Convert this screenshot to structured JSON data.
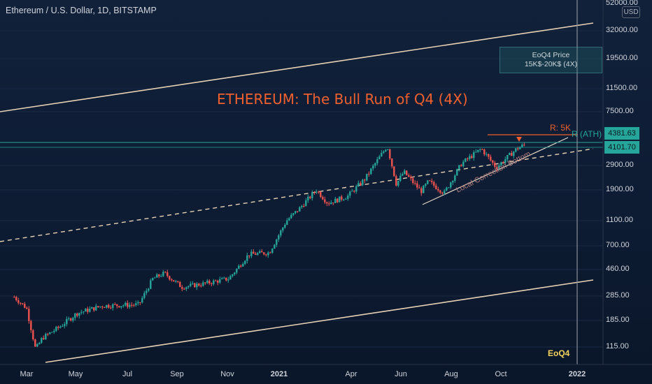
{
  "title": "Ethereum / U.S. Dollar, 1D, BITSTAMP",
  "currency_badge": "USD",
  "headline": "ETHEREUM: The Bull Run of Q4 (4X)",
  "annotations": {
    "price_box_line1": "EoQ4 Price",
    "price_box_line2": "15K$-20K$ (4X)",
    "resistance_label": "R: 5K",
    "ath_label": "R (ATH)",
    "correction_label": "Local Correction Bottom",
    "eoq4_label": "EoQ4"
  },
  "price_tags": {
    "current": "4101.70",
    "ath": "4381.63",
    "top_partial": "52000.00"
  },
  "colors": {
    "accent_text": "#f0602e",
    "teal": "#26a69a",
    "red": "#ef5350",
    "channel": "#e8d2b5",
    "box_fill": "#1f5e60"
  },
  "chart_data": {
    "type": "candlestick",
    "title": "Ethereum / U.S. Dollar, 1D, BITSTAMP",
    "y_scale": "log",
    "y_ticks": [
      "52000.00",
      "32000.00",
      "19500.00",
      "11500.00",
      "7500.00",
      "2900.00",
      "1900.00",
      "1100.00",
      "700.00",
      "460.00",
      "285.00",
      "185.00",
      "115.00"
    ],
    "x_ticks": [
      "Mar",
      "May",
      "Jul",
      "Sep",
      "Nov",
      "2021",
      "Apr",
      "Jun",
      "Aug",
      "Oct",
      "2022"
    ],
    "price_path": [
      [
        "2020-02-15",
        280
      ],
      [
        "2020-03-01",
        230
      ],
      [
        "2020-03-12",
        110
      ],
      [
        "2020-03-20",
        135
      ],
      [
        "2020-04-10",
        165
      ],
      [
        "2020-05-01",
        210
      ],
      [
        "2020-06-01",
        240
      ],
      [
        "2020-07-15",
        245
      ],
      [
        "2020-08-01",
        390
      ],
      [
        "2020-08-15",
        430
      ],
      [
        "2020-09-05",
        335
      ],
      [
        "2020-10-01",
        355
      ],
      [
        "2020-11-01",
        390
      ],
      [
        "2020-11-25",
        600
      ],
      [
        "2020-12-20",
        620
      ],
      [
        "2021-01-10",
        1100
      ],
      [
        "2021-01-25",
        1350
      ],
      [
        "2021-02-15",
        1900
      ],
      [
        "2021-03-01",
        1500
      ],
      [
        "2021-03-25",
        1700
      ],
      [
        "2021-04-15",
        2300
      ],
      [
        "2021-05-12",
        4100
      ],
      [
        "2021-05-23",
        2100
      ],
      [
        "2021-06-01",
        2600
      ],
      [
        "2021-06-22",
        1850
      ],
      [
        "2021-07-01",
        2200
      ],
      [
        "2021-07-20",
        1800
      ],
      [
        "2021-08-10",
        3000
      ],
      [
        "2021-09-03",
        3900
      ],
      [
        "2021-09-21",
        2800
      ],
      [
        "2021-10-01",
        3200
      ],
      [
        "2021-10-16",
        3900
      ],
      [
        "2021-10-26",
        4200
      ]
    ],
    "levels": {
      "resistance": 5000,
      "ath": 4381.63,
      "current": 4101.7
    }
  }
}
